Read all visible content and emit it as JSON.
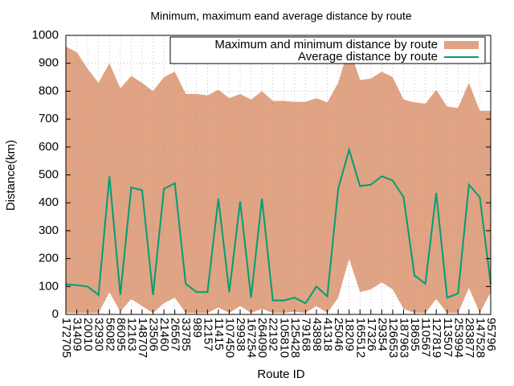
{
  "chart_data": {
    "type": "line",
    "title": "Minimum, maximum eand average distance by route",
    "x_label": "Route ID",
    "y_label": "Distance(km)",
    "categories": [
      "172705",
      "31409",
      "20010",
      "32930",
      "56082",
      "86095",
      "12163",
      "148707",
      "23506",
      "21460",
      "26567",
      "33785",
      "989",
      "12157",
      "11415",
      "107450",
      "29938",
      "167254",
      "264090",
      "22192",
      "105810",
      "125428",
      "79168",
      "43898",
      "41318",
      "25046",
      "18209",
      "165512",
      "17326",
      "29354",
      "126653",
      "187963",
      "18695",
      "110567",
      "127819",
      "113507",
      "253994",
      "283877",
      "147528",
      "95796"
    ],
    "series": [
      {
        "name": "Maximum and minimum distance by route",
        "color": "#e0a383",
        "max": [
          960,
          940,
          880,
          830,
          900,
          810,
          855,
          830,
          800,
          850,
          870,
          790,
          790,
          785,
          805,
          775,
          790,
          770,
          800,
          765,
          765,
          762,
          762,
          775,
          760,
          830,
          960,
          840,
          845,
          870,
          850,
          770,
          760,
          755,
          805,
          745,
          740,
          830,
          730,
          730
        ],
        "min": [
          5,
          5,
          5,
          5,
          80,
          10,
          55,
          30,
          5,
          40,
          60,
          5,
          5,
          5,
          25,
          5,
          30,
          5,
          20,
          5,
          5,
          10,
          5,
          30,
          5,
          60,
          200,
          80,
          90,
          115,
          90,
          20,
          5,
          5,
          55,
          5,
          5,
          95,
          5,
          80
        ]
      },
      {
        "name": "Average distance by route",
        "color": "#009e73",
        "values": [
          108,
          105,
          100,
          70,
          495,
          70,
          455,
          445,
          70,
          450,
          470,
          110,
          80,
          80,
          415,
          80,
          405,
          60,
          415,
          50,
          50,
          60,
          40,
          100,
          65,
          450,
          590,
          460,
          465,
          495,
          480,
          420,
          140,
          110,
          435,
          60,
          75,
          465,
          420,
          110
        ]
      }
    ],
    "ylim": [
      0,
      1000
    ],
    "yticks": [
      0,
      100,
      200,
      300,
      400,
      500,
      600,
      700,
      800,
      900,
      1000
    ],
    "grid": true,
    "legend": "top-right"
  }
}
